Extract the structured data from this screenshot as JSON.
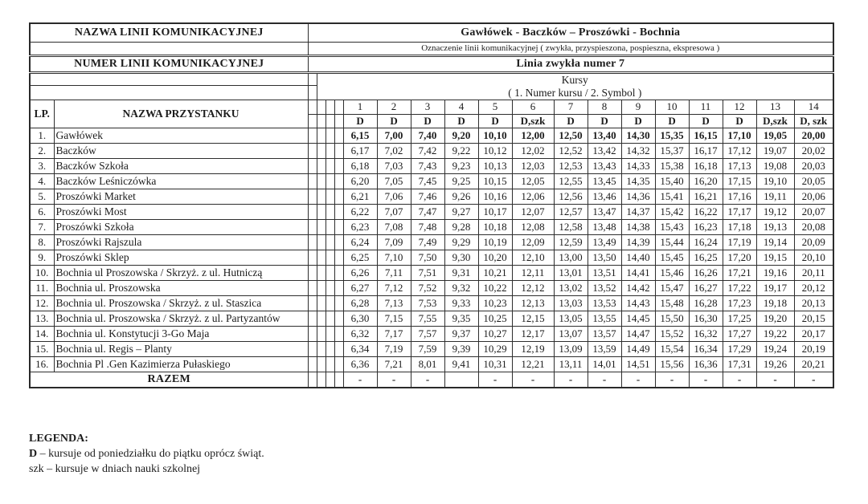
{
  "header": {
    "line_name_label": "NAZWA LINII KOMUNIKACYJNEJ",
    "line_name_value": "Gawłówek - Baczków – Proszówki - Bochnia",
    "designation_note": "Oznaczenie linii komunikacyjnej ( zwykła, przyspieszona, pospieszna, ekspresowa )",
    "line_number_label": "NUMER LINII KOMUNIKACYJNEJ",
    "line_number_value": "Linia zwykła numer 7",
    "courses_title": "Kursy",
    "courses_subtitle": "( 1. Numer kursu / 2. Symbol )"
  },
  "table": {
    "lp_header": "LP.",
    "stop_header": "NAZWA PRZYSTANKU",
    "course_numbers": [
      "1",
      "2",
      "3",
      "4",
      "5",
      "6",
      "7",
      "8",
      "9",
      "10",
      "11",
      "12",
      "13",
      "14"
    ],
    "course_symbols": [
      "D",
      "D",
      "D",
      "D",
      "D",
      "D,szk",
      "D",
      "D",
      "D",
      "D",
      "D",
      "D",
      "D,szk",
      "D, szk"
    ],
    "rows": [
      {
        "lp": "1.",
        "stop": "Gawłówek",
        "times": [
          "6,15",
          "7,00",
          "7,40",
          "9,20",
          "10,10",
          "12,00",
          "12,50",
          "13,40",
          "14,30",
          "15,35",
          "16,15",
          "17,10",
          "19,05",
          "20,00"
        ]
      },
      {
        "lp": "2.",
        "stop": "Baczków",
        "times": [
          "6,17",
          "7,02",
          "7,42",
          "9,22",
          "10,12",
          "12,02",
          "12,52",
          "13,42",
          "14,32",
          "15,37",
          "16,17",
          "17,12",
          "19,07",
          "20,02"
        ]
      },
      {
        "lp": "3.",
        "stop": "Baczków Szkoła",
        "times": [
          "6,18",
          "7,03",
          "7,43",
          "9,23",
          "10,13",
          "12,03",
          "12,53",
          "13,43",
          "14,33",
          "15,38",
          "16,18",
          "17,13",
          "19,08",
          "20,03"
        ]
      },
      {
        "lp": "4.",
        "stop": "Baczków Leśniczówka",
        "times": [
          "6,20",
          "7,05",
          "7,45",
          "9,25",
          "10,15",
          "12,05",
          "12,55",
          "13,45",
          "14,35",
          "15,40",
          "16,20",
          "17,15",
          "19,10",
          "20,05"
        ]
      },
      {
        "lp": "5.",
        "stop": "Proszówki Market",
        "times": [
          "6,21",
          "7,06",
          "7,46",
          "9,26",
          "10,16",
          "12,06",
          "12,56",
          "13,46",
          "14,36",
          "15,41",
          "16,21",
          "17,16",
          "19,11",
          "20,06"
        ]
      },
      {
        "lp": "6.",
        "stop": "Proszówki Most",
        "times": [
          "6,22",
          "7,07",
          "7,47",
          "9,27",
          "10,17",
          "12,07",
          "12,57",
          "13,47",
          "14,37",
          "15,42",
          "16,22",
          "17,17",
          "19,12",
          "20,07"
        ]
      },
      {
        "lp": "7.",
        "stop": "Proszówki Szkoła",
        "times": [
          "6,23",
          "7,08",
          "7,48",
          "9,28",
          "10,18",
          "12,08",
          "12,58",
          "13,48",
          "14,38",
          "15,43",
          "16,23",
          "17,18",
          "19,13",
          "20,08"
        ]
      },
      {
        "lp": "8.",
        "stop": "Proszówki Rajszula",
        "times": [
          "6,24",
          "7,09",
          "7,49",
          "9,29",
          "10,19",
          "12,09",
          "12,59",
          "13,49",
          "14,39",
          "15,44",
          "16,24",
          "17,19",
          "19,14",
          "20,09"
        ]
      },
      {
        "lp": "9.",
        "stop": "Proszówki Sklep",
        "times": [
          "6,25",
          "7,10",
          "7,50",
          "9,30",
          "10,20",
          "12,10",
          "13,00",
          "13,50",
          "14,40",
          "15,45",
          "16,25",
          "17,20",
          "19,15",
          "20,10"
        ]
      },
      {
        "lp": "10.",
        "stop": "Bochnia ul Proszowska / Skrzyż. z ul. Hutniczą",
        "times": [
          "6,26",
          "7,11",
          "7,51",
          "9,31",
          "10,21",
          "12,11",
          "13,01",
          "13,51",
          "14,41",
          "15,46",
          "16,26",
          "17,21",
          "19,16",
          "20,11"
        ]
      },
      {
        "lp": "11.",
        "stop": "Bochnia ul. Proszowska",
        "times": [
          "6,27",
          "7,12",
          "7,52",
          "9,32",
          "10,22",
          "12,12",
          "13,02",
          "13,52",
          "14,42",
          "15,47",
          "16,27",
          "17,22",
          "19,17",
          "20,12"
        ]
      },
      {
        "lp": "12.",
        "stop": "Bochnia ul. Proszowska / Skrzyż. z  ul. Staszica",
        "times": [
          "6,28",
          "7,13",
          "7,53",
          "9,33",
          "10,23",
          "12,13",
          "13,03",
          "13,53",
          "14,43",
          "15,48",
          "16,28",
          "17,23",
          "19,18",
          "20,13"
        ]
      },
      {
        "lp": "13.",
        "stop": "Bochnia ul. Proszowska / Skrzyż. z ul. Partyzantów",
        "times": [
          "6,30",
          "7,15",
          "7,55",
          "9,35",
          "10,25",
          "12,15",
          "13,05",
          "13,55",
          "14,45",
          "15,50",
          "16,30",
          "17,25",
          "19,20",
          "20,15"
        ]
      },
      {
        "lp": "14.",
        "stop": "Bochnia ul. Konstytucji 3-Go Maja",
        "times": [
          "6,32",
          "7,17",
          "7,57",
          "9,37",
          "10,27",
          "12,17",
          "13,07",
          "13,57",
          "14,47",
          "15,52",
          "16,32",
          "17,27",
          "19,22",
          "20,17"
        ]
      },
      {
        "lp": "15.",
        "stop": "Bochnia ul. Regis – Planty",
        "times": [
          "6,34",
          "7,19",
          "7,59",
          "9,39",
          "10,29",
          "12,19",
          "13,09",
          "13,59",
          "14,49",
          "15,54",
          "16,34",
          "17,29",
          "19,24",
          "20,19"
        ]
      },
      {
        "lp": "16.",
        "stop": "Bochnia  Pl .Gen Kazimierza Pułaskiego",
        "times": [
          "6,36",
          "7,21",
          "8,01",
          "9,41",
          "10,31",
          "12,21",
          "13,11",
          "14,01",
          "14,51",
          "15,56",
          "16,36",
          "17,31",
          "19,26",
          "20,21"
        ]
      }
    ],
    "razem_label": "RAZEM",
    "razem_values": [
      "-",
      "-",
      "-",
      "",
      "-",
      "-",
      "-",
      "-",
      "-",
      "-",
      "-",
      "-",
      "-",
      "-"
    ]
  },
  "legend": {
    "title": "LEGENDA:",
    "item1_symbol": "D",
    "item1_text": "– kursuje od poniedziałku do piątku oprócz świąt.",
    "item2_symbol": "szk",
    "item2_text": "– kursuje w dniach nauki szkolnej"
  }
}
